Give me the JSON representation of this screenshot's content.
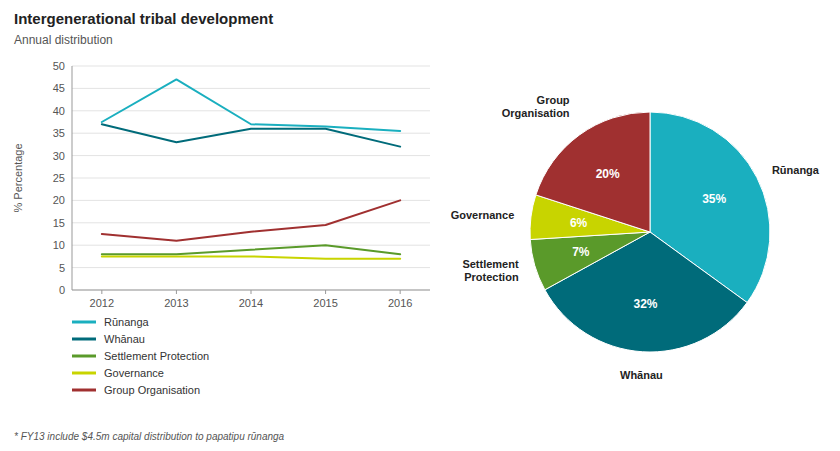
{
  "chart_data": [
    {
      "type": "line",
      "title": "Intergenerational tribal development",
      "subtitle": "Annual distribution",
      "x": [
        2012,
        2013,
        2014,
        2015,
        2016
      ],
      "series": [
        {
          "name": "Rūnanga",
          "color": "#1aafbf",
          "values": [
            37.5,
            47.0,
            37.0,
            36.5,
            35.5
          ]
        },
        {
          "name": "Whānau",
          "color": "#006b7a",
          "values": [
            37.0,
            33.0,
            36.0,
            36.0,
            32.0
          ]
        },
        {
          "name": "Settlement Protection",
          "color": "#5a9a2a",
          "values": [
            8.0,
            8.0,
            9.0,
            10.0,
            8.0
          ]
        },
        {
          "name": "Governance",
          "color": "#c8d400",
          "values": [
            7.5,
            7.5,
            7.5,
            7.0,
            7.0
          ]
        },
        {
          "name": "Group Organisation",
          "color": "#a03030",
          "values": [
            12.5,
            11.0,
            13.0,
            14.5,
            20.0
          ]
        }
      ],
      "ylabel": "% Percentage",
      "xlim": [
        2011.6,
        2016.4
      ],
      "xticks": [
        2012,
        2013,
        2014,
        2015,
        2016
      ],
      "ylim": [
        0,
        50
      ],
      "yticks": [
        0,
        5,
        10,
        15,
        20,
        25,
        30,
        35,
        40,
        45,
        50
      ],
      "grid": true,
      "legend": "bottom",
      "annotations": [
        "* FY13 include $4.5m capital distribution to papatipu rūnanga"
      ]
    },
    {
      "type": "pie",
      "categories": [
        "Rūnanga",
        "Whānau",
        "Settlement\nProtection",
        "Governance",
        "Group\nOrganisation"
      ],
      "values": [
        35,
        32,
        7,
        6,
        20
      ],
      "value_labels": [
        "35%",
        "32%",
        "7%",
        "6%",
        "20%"
      ],
      "colors": [
        "#1aafbf",
        "#006b7a",
        "#5a9a2a",
        "#c8d400",
        "#a03030"
      ],
      "data_labels": true
    }
  ]
}
